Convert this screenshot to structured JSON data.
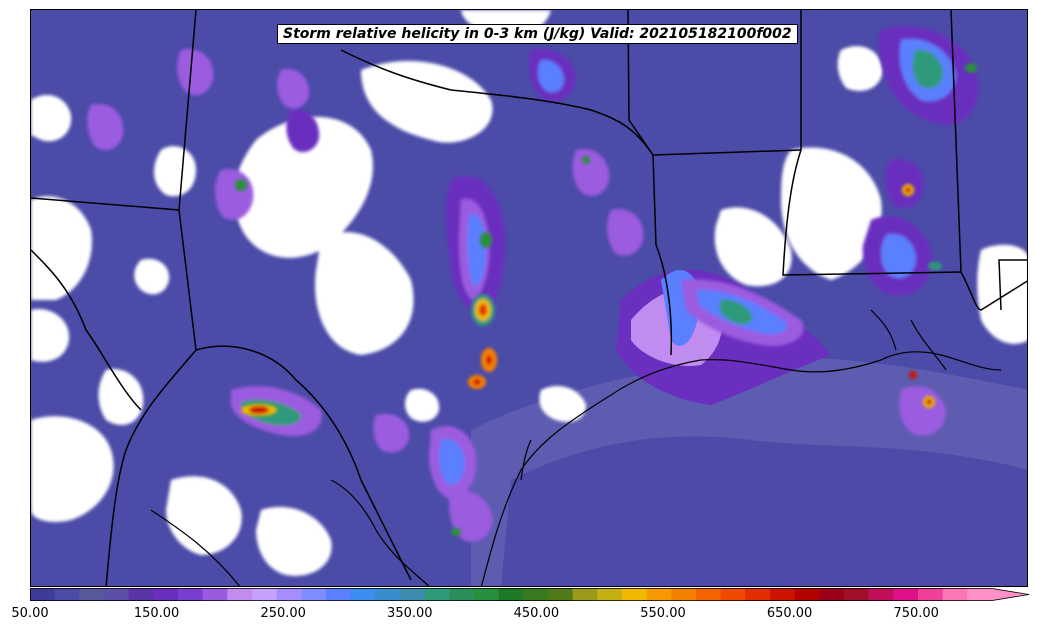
{
  "title": "Storm relative helicity in 0-3 km (J/kg) Valid: 202105182100f002",
  "colorbar": {
    "ticks": [
      "50.00",
      "150.00",
      "250.00",
      "350.00",
      "450.00",
      "550.00",
      "650.00",
      "750.00"
    ],
    "extend": "max",
    "colors": [
      "#3d3d99",
      "#4b4ba8",
      "#59599e",
      "#5c4fa8",
      "#5a35a8",
      "#6a2fbf",
      "#7a3fd0",
      "#9b5be0",
      "#c08cf0",
      "#c6a0ff",
      "#a58cff",
      "#7f8cff",
      "#5a7fff",
      "#3d8cf0",
      "#3a8ccc",
      "#3d8cb0",
      "#2f9a7a",
      "#2c8f5a",
      "#2a8f3d",
      "#1f7a28",
      "#3a7a1f",
      "#4f7a1a",
      "#9a9a1a",
      "#c4b010",
      "#f0b800",
      "#f59a00",
      "#f58000",
      "#f56400",
      "#f04a00",
      "#e02e00",
      "#cc1400",
      "#b50000",
      "#9a0018",
      "#a0102a",
      "#c0105a",
      "#e0108a",
      "#f0409a",
      "#f878b4",
      "#ff90c8"
    ]
  },
  "map": {
    "field": "Storm relative helicity 0-3 km",
    "region": "Texas / Louisiana / Gulf Coast",
    "background_color": "#ffffff",
    "boundary_color": "#000000"
  }
}
